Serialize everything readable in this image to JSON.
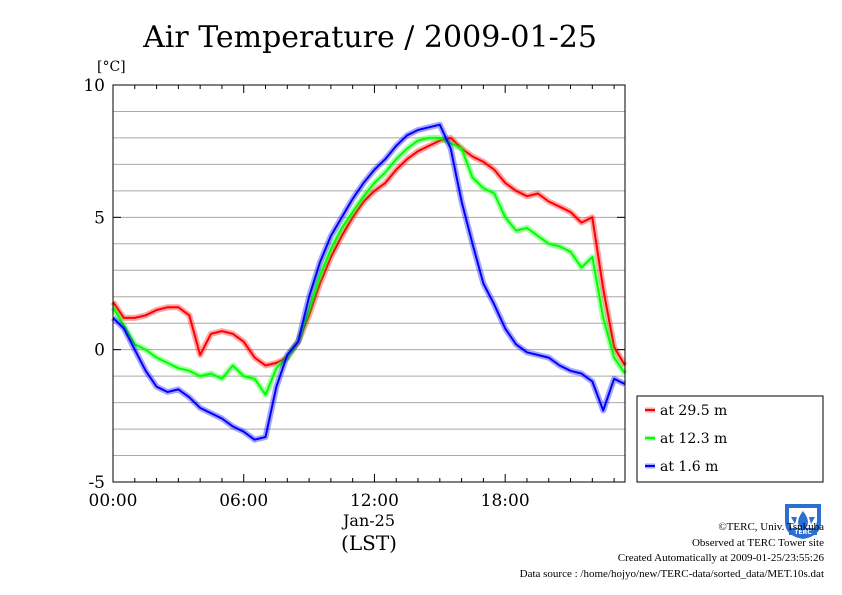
{
  "title": "Air Temperature / 2009-01-25",
  "chart_data": {
    "type": "line",
    "title": "Air Temperature / 2009-01-25",
    "ylabel": "[°C]",
    "xlabel": "(LST)",
    "x_date_label": "Jan-25",
    "xlim": [
      0,
      23.5
    ],
    "ylim": [
      -5,
      10
    ],
    "y_ticks": [
      -5,
      0,
      5,
      10
    ],
    "y_minor_step": 1,
    "x_ticks": [
      "00:00",
      "06:00",
      "12:00",
      "18:00"
    ],
    "x_tick_hours": [
      0,
      6,
      12,
      18
    ],
    "grid": true,
    "legend_position": "right",
    "x_hours": [
      0.0,
      0.5,
      1.0,
      1.5,
      2.0,
      2.5,
      3.0,
      3.5,
      4.0,
      4.5,
      5.0,
      5.5,
      6.0,
      6.5,
      7.0,
      7.5,
      8.0,
      8.5,
      9.0,
      9.5,
      10.0,
      10.5,
      11.0,
      11.5,
      12.0,
      12.5,
      13.0,
      13.5,
      14.0,
      14.5,
      15.0,
      15.5,
      16.0,
      16.5,
      17.0,
      17.5,
      18.0,
      18.5,
      19.0,
      19.5,
      20.0,
      20.5,
      21.0,
      21.5,
      22.0,
      22.5,
      23.0,
      23.5
    ],
    "series": [
      {
        "name": "at 29.5 m",
        "color": "#ff0000",
        "values": [
          1.8,
          1.2,
          1.2,
          1.3,
          1.5,
          1.6,
          1.6,
          1.3,
          -0.2,
          0.6,
          0.7,
          0.6,
          0.3,
          -0.3,
          -0.6,
          -0.5,
          -0.3,
          0.3,
          1.3,
          2.5,
          3.5,
          4.3,
          5.0,
          5.6,
          6.0,
          6.3,
          6.8,
          7.2,
          7.5,
          7.7,
          7.9,
          8.0,
          7.6,
          7.3,
          7.1,
          6.8,
          6.3,
          6.0,
          5.8,
          5.9,
          5.6,
          5.4,
          5.2,
          4.8,
          5.0,
          2.3,
          0.1,
          -0.6
        ]
      },
      {
        "name": "at 12.3 m",
        "color": "#00ff00",
        "values": [
          1.6,
          0.9,
          0.2,
          0.0,
          -0.3,
          -0.5,
          -0.7,
          -0.8,
          -1.0,
          -0.9,
          -1.1,
          -0.6,
          -1.0,
          -1.1,
          -1.7,
          -0.7,
          -0.3,
          0.3,
          1.5,
          2.8,
          3.8,
          4.6,
          5.2,
          5.8,
          6.3,
          6.7,
          7.2,
          7.6,
          7.9,
          8.0,
          8.0,
          7.8,
          7.6,
          6.5,
          6.1,
          5.9,
          5.0,
          4.5,
          4.6,
          4.3,
          4.0,
          3.9,
          3.7,
          3.1,
          3.5,
          1.2,
          -0.3,
          -0.9
        ]
      },
      {
        "name": "at 1.6 m",
        "color": "#0000ff",
        "values": [
          1.2,
          0.8,
          0.0,
          -0.8,
          -1.4,
          -1.6,
          -1.5,
          -1.8,
          -2.2,
          -2.4,
          -2.6,
          -2.9,
          -3.1,
          -3.4,
          -3.3,
          -1.4,
          -0.2,
          0.3,
          2.0,
          3.3,
          4.3,
          5.0,
          5.7,
          6.3,
          6.8,
          7.2,
          7.7,
          8.1,
          8.3,
          8.4,
          8.5,
          7.6,
          5.6,
          4.0,
          2.5,
          1.7,
          0.8,
          0.2,
          -0.1,
          -0.2,
          -0.3,
          -0.6,
          -0.8,
          -0.9,
          -1.2,
          -2.3,
          -1.1,
          -1.3
        ]
      }
    ]
  },
  "credits": {
    "copyright": "©TERC, Univ. Tsukuba",
    "observed": "Observed at TERC Tower site",
    "created": "Created Automatically at 2009-01-25/23:55:26",
    "source": "Data source : /home/hojyo/new/TERC-data/sorted_data/MET.10s.dat",
    "logo_text": "TERC"
  }
}
